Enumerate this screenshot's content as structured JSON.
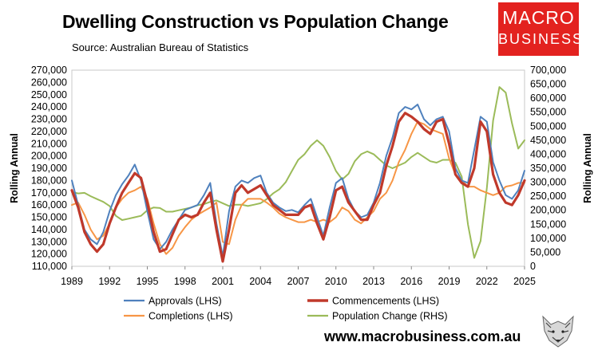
{
  "header": {
    "title": "Dwelling Construction vs Population Change",
    "source": "Source: Australian Bureau of Statistics"
  },
  "logo": {
    "line1": "MACRO",
    "line2": "BUSINESS"
  },
  "footer": {
    "website": "www.macrobusiness.com.au"
  },
  "colors": {
    "approvals": "#4f81bd",
    "commencements": "#c0392b",
    "completions": "#f79646",
    "population": "#9bbb59",
    "logo_bg": "#e3221f"
  },
  "chart_data": {
    "type": "line",
    "title": "Dwelling Construction vs Population Change",
    "left_axis": {
      "label": "Rolling Annual",
      "range": [
        110000,
        270000
      ],
      "ticks": [
        "110,000",
        "120,000",
        "130,000",
        "140,000",
        "150,000",
        "160,000",
        "170,000",
        "180,000",
        "190,000",
        "200,000",
        "210,000",
        "220,000",
        "230,000",
        "240,000",
        "250,000",
        "260,000",
        "270,000"
      ]
    },
    "right_axis": {
      "label": "Rolling Annual",
      "range": [
        0,
        700000
      ],
      "ticks": [
        "0",
        "50,000",
        "100,000",
        "150,000",
        "200,000",
        "250,000",
        "300,000",
        "350,000",
        "400,000",
        "450,000",
        "500,000",
        "550,000",
        "600,000",
        "650,000",
        "700,000"
      ]
    },
    "x_axis": {
      "range": [
        1989,
        2025
      ],
      "ticks": [
        "1989",
        "1992",
        "1995",
        "1998",
        "2001",
        "2004",
        "2007",
        "2010",
        "2013",
        "2016",
        "2019",
        "2022",
        "2025"
      ]
    },
    "legend": {
      "position": "bottom"
    },
    "series": [
      {
        "name": "Approvals (LHS)",
        "axis": "left",
        "x": [
          1989,
          1989.5,
          1990,
          1990.5,
          1991,
          1991.5,
          1992,
          1992.5,
          1993,
          1993.5,
          1994,
          1994.5,
          1995,
          1995.5,
          1996,
          1996.5,
          1997,
          1997.5,
          1998,
          1998.5,
          1999,
          1999.5,
          2000,
          2000.5,
          2001,
          2001.5,
          2002,
          2002.5,
          2003,
          2003.5,
          2004,
          2004.5,
          2005,
          2005.5,
          2006,
          2006.5,
          2007,
          2007.5,
          2008,
          2008.5,
          2009,
          2009.5,
          2010,
          2010.5,
          2011,
          2011.5,
          2012,
          2012.5,
          2013,
          2013.5,
          2014,
          2014.5,
          2015,
          2015.5,
          2016,
          2016.5,
          2017,
          2017.5,
          2018,
          2018.5,
          2019,
          2019.5,
          2020,
          2020.5,
          2021,
          2021.5,
          2022,
          2022.5,
          2023,
          2023.5,
          2024,
          2024.5,
          2025
        ],
        "values": [
          180000,
          160000,
          140000,
          132000,
          128000,
          138000,
          155000,
          168000,
          177000,
          184000,
          193000,
          180000,
          155000,
          132000,
          124000,
          130000,
          140000,
          148000,
          156000,
          158000,
          160000,
          168000,
          178000,
          145000,
          118000,
          155000,
          175000,
          180000,
          178000,
          182000,
          184000,
          170000,
          162000,
          158000,
          155000,
          156000,
          154000,
          160000,
          165000,
          150000,
          135000,
          158000,
          178000,
          182000,
          165000,
          155000,
          150000,
          152000,
          162000,
          178000,
          200000,
          215000,
          235000,
          240000,
          238000,
          242000,
          230000,
          225000,
          230000,
          232000,
          220000,
          190000,
          180000,
          178000,
          205000,
          232000,
          228000,
          195000,
          180000,
          168000,
          165000,
          172000,
          188000
        ]
      },
      {
        "name": "Commencements (LHS)",
        "axis": "left",
        "x": [
          1989,
          1989.5,
          1990,
          1990.5,
          1991,
          1991.5,
          1992,
          1992.5,
          1993,
          1993.5,
          1994,
          1994.5,
          1995,
          1995.5,
          1996,
          1996.5,
          1997,
          1997.5,
          1998,
          1998.5,
          1999,
          1999.5,
          2000,
          2000.5,
          2001,
          2001.5,
          2002,
          2002.5,
          2003,
          2003.5,
          2004,
          2004.5,
          2005,
          2005.5,
          2006,
          2006.5,
          2007,
          2007.5,
          2008,
          2008.5,
          2009,
          2009.5,
          2010,
          2010.5,
          2011,
          2011.5,
          2012,
          2012.5,
          2013,
          2013.5,
          2014,
          2014.5,
          2015,
          2015.5,
          2016,
          2016.5,
          2017,
          2017.5,
          2018,
          2018.5,
          2019,
          2019.5,
          2020,
          2020.5,
          2021,
          2021.5,
          2022,
          2022.5,
          2023,
          2023.5,
          2024,
          2024.5,
          2025
        ],
        "values": [
          172000,
          158000,
          138000,
          128000,
          122000,
          128000,
          145000,
          158000,
          170000,
          178000,
          186000,
          182000,
          162000,
          138000,
          122000,
          124000,
          136000,
          148000,
          152000,
          150000,
          152000,
          162000,
          170000,
          140000,
          114000,
          140000,
          170000,
          176000,
          170000,
          173000,
          176000,
          168000,
          160000,
          156000,
          152000,
          152000,
          152000,
          158000,
          160000,
          145000,
          132000,
          150000,
          172000,
          175000,
          162000,
          155000,
          148000,
          148000,
          160000,
          170000,
          192000,
          208000,
          228000,
          235000,
          232000,
          228000,
          222000,
          218000,
          228000,
          230000,
          210000,
          185000,
          178000,
          175000,
          190000,
          228000,
          220000,
          185000,
          170000,
          162000,
          160000,
          168000,
          180000
        ]
      },
      {
        "name": "Completions (LHS)",
        "axis": "left",
        "x": [
          1989,
          1989.5,
          1990,
          1990.5,
          1991,
          1991.5,
          1992,
          1992.5,
          1993,
          1993.5,
          1994,
          1994.5,
          1995,
          1995.5,
          1996,
          1996.5,
          1997,
          1997.5,
          1998,
          1998.5,
          1999,
          1999.5,
          2000,
          2000.5,
          2001,
          2001.5,
          2002,
          2002.5,
          2003,
          2003.5,
          2004,
          2004.5,
          2005,
          2005.5,
          2006,
          2006.5,
          2007,
          2007.5,
          2008,
          2008.5,
          2009,
          2009.5,
          2010,
          2010.5,
          2011,
          2011.5,
          2012,
          2012.5,
          2013,
          2013.5,
          2014,
          2014.5,
          2015,
          2015.5,
          2016,
          2016.5,
          2017,
          2017.5,
          2018,
          2018.5,
          2019,
          2019.5,
          2020,
          2020.5,
          2021,
          2021.5,
          2022,
          2022.5,
          2023,
          2023.5,
          2024,
          2024.5,
          2025
        ],
        "values": [
          160000,
          162000,
          152000,
          140000,
          132000,
          135000,
          145000,
          158000,
          165000,
          170000,
          172000,
          175000,
          165000,
          145000,
          128000,
          120000,
          125000,
          135000,
          142000,
          148000,
          152000,
          155000,
          158000,
          162000,
          130000,
          128000,
          148000,
          160000,
          165000,
          165000,
          165000,
          162000,
          158000,
          153000,
          150000,
          148000,
          146000,
          146000,
          148000,
          146000,
          148000,
          146000,
          150000,
          158000,
          155000,
          148000,
          145000,
          150000,
          155000,
          165000,
          170000,
          180000,
          195000,
          205000,
          218000,
          228000,
          226000,
          222000,
          220000,
          218000,
          198000,
          185000,
          180000,
          175000,
          175000,
          172000,
          170000,
          168000,
          170000,
          175000,
          176000,
          178000,
          178000
        ]
      },
      {
        "name": "Population Change (RHS)",
        "axis": "right",
        "x": [
          1989,
          1989.5,
          1990,
          1990.5,
          1991,
          1991.5,
          1992,
          1992.5,
          1993,
          1993.5,
          1994,
          1994.5,
          1995,
          1995.5,
          1996,
          1996.5,
          1997,
          1997.5,
          1998,
          1998.5,
          1999,
          1999.5,
          2000,
          2000.5,
          2001,
          2001.5,
          2002,
          2002.5,
          2003,
          2003.5,
          2004,
          2004.5,
          2005,
          2005.5,
          2006,
          2006.5,
          2007,
          2007.5,
          2008,
          2008.5,
          2009,
          2009.5,
          2010,
          2010.5,
          2011,
          2011.5,
          2012,
          2012.5,
          2013,
          2013.5,
          2014,
          2014.5,
          2015,
          2015.5,
          2016,
          2016.5,
          2017,
          2017.5,
          2018,
          2018.5,
          2019,
          2019.5,
          2020,
          2020.5,
          2021,
          2021.5,
          2022,
          2022.5,
          2023,
          2023.5,
          2024,
          2024.5,
          2025
        ],
        "values": [
          265000,
          260000,
          262000,
          250000,
          240000,
          230000,
          215000,
          180000,
          165000,
          170000,
          175000,
          180000,
          200000,
          210000,
          208000,
          195000,
          195000,
          200000,
          205000,
          210000,
          218000,
          222000,
          230000,
          235000,
          225000,
          215000,
          220000,
          220000,
          215000,
          220000,
          225000,
          240000,
          260000,
          275000,
          300000,
          340000,
          380000,
          400000,
          430000,
          450000,
          430000,
          390000,
          340000,
          310000,
          330000,
          375000,
          400000,
          410000,
          400000,
          380000,
          360000,
          350000,
          360000,
          370000,
          390000,
          405000,
          390000,
          375000,
          370000,
          380000,
          380000,
          370000,
          320000,
          150000,
          30000,
          90000,
          280000,
          520000,
          640000,
          620000,
          510000,
          420000,
          450000
        ]
      }
    ]
  }
}
